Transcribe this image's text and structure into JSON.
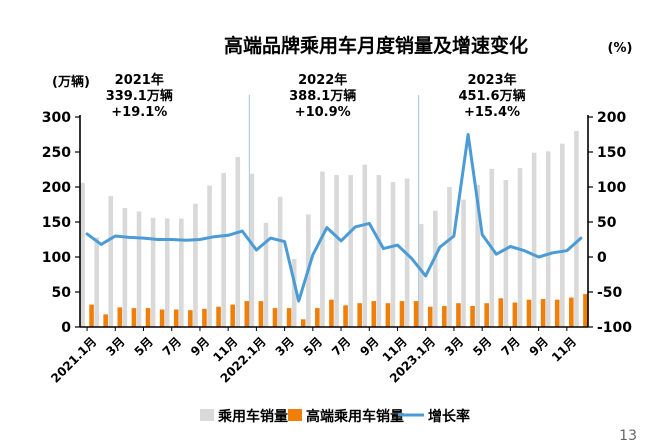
{
  "chart_data": {
    "type": "bar",
    "title": "高端品牌乘用车月度销量及增速变化",
    "left_unit": "(万辆)",
    "right_unit": "(%)",
    "y_left_lim": [
      0,
      300
    ],
    "y_left_ticks": [
      "0",
      "50",
      "100",
      "150",
      "200",
      "250",
      "300"
    ],
    "y_right_lim": [
      -100,
      200
    ],
    "y_right_ticks": [
      "-100",
      "-50",
      "0",
      "50",
      "100",
      "150",
      "200"
    ],
    "x_tick_labels": [
      "2021.1月",
      "3月",
      "5月",
      "7月",
      "9月",
      "11月",
      "2022.1月",
      "3月",
      "5月",
      "7月",
      "9月",
      "11月",
      "2023.1月",
      "3月",
      "5月",
      "7月",
      "9月",
      "11月"
    ],
    "annotations": [
      {
        "year": "2021年",
        "total": "339.1万辆",
        "growth": "+19.1%"
      },
      {
        "year": "2022年",
        "total": "388.1万辆",
        "growth": "+10.9%"
      },
      {
        "year": "2023年",
        "total": "451.6万辆",
        "growth": "+15.4%"
      }
    ],
    "series": [
      {
        "name": "乘用车销量",
        "kind": "bar",
        "color": "#d9d9d9",
        "values": [
          206,
          128,
          187,
          170,
          165,
          156,
          155,
          155,
          176,
          202,
          220,
          243,
          219,
          149,
          186,
          97,
          161,
          222,
          217,
          217,
          232,
          217,
          207,
          212,
          147,
          166,
          200,
          182,
          203,
          226,
          210,
          227,
          249,
          251,
          262,
          280
        ]
      },
      {
        "name": "高端乘用车销量",
        "kind": "bar",
        "color": "#f07f0a",
        "values": [
          32,
          18,
          28,
          27,
          27,
          25,
          25,
          24,
          26,
          29,
          32,
          37,
          37,
          27,
          27,
          11,
          27,
          39,
          31,
          34,
          37,
          34,
          37,
          37,
          29,
          30,
          34,
          30,
          34,
          41,
          35,
          39,
          40,
          39,
          42,
          47
        ]
      },
      {
        "name": "增长率",
        "kind": "line",
        "axis": "right",
        "color": "#4a9bd6",
        "values": [
          33,
          18,
          30,
          28,
          27,
          25,
          25,
          24,
          25,
          29,
          31,
          37,
          10,
          27,
          22,
          -63,
          3,
          42,
          23,
          43,
          48,
          12,
          17,
          -2,
          -27,
          14,
          30,
          175,
          32,
          4,
          15,
          9,
          0,
          6,
          9,
          27
        ]
      }
    ]
  },
  "page_number": "13"
}
